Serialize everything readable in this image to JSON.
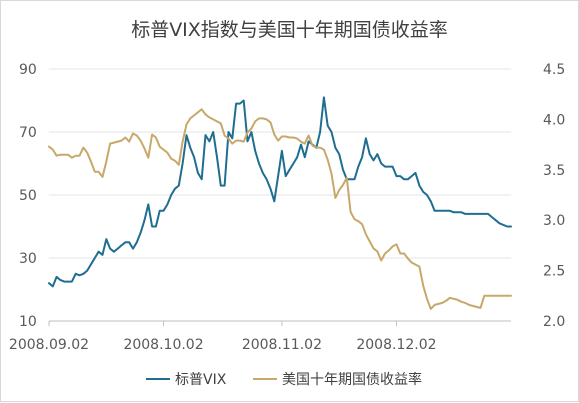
{
  "chart_data": {
    "type": "line",
    "title": "标普VIX指数与美国十年期国债收益率",
    "x_ticks": [
      "2008.09.02",
      "2008.10.02",
      "2008.11.02",
      "2008.12.02"
    ],
    "x_tick_days": [
      0,
      30,
      61,
      91
    ],
    "x_range_days": [
      0,
      121
    ],
    "y_left": {
      "ticks": [
        90,
        70,
        50,
        30,
        10
      ],
      "range": [
        10,
        90
      ]
    },
    "y_right": {
      "ticks": [
        "4.5",
        "4.0",
        "3.5",
        "3.0",
        "2.5",
        "2.0"
      ],
      "range": [
        2.0,
        4.5
      ]
    },
    "legend_position": "bottom",
    "series": [
      {
        "name": "标普VIX",
        "axis": "left",
        "color": "#1f6e91",
        "x": [
          0,
          1,
          2,
          3,
          4,
          5,
          6,
          7,
          8,
          9,
          10,
          11,
          12,
          13,
          14,
          15,
          16,
          17,
          18,
          19,
          20,
          21,
          22,
          23,
          24,
          25,
          26,
          27,
          28,
          29,
          30,
          31,
          32,
          33,
          34,
          35,
          36,
          37,
          38,
          39,
          40,
          41,
          42,
          43,
          44,
          45,
          46,
          47,
          48,
          49,
          50,
          51,
          52,
          53,
          54,
          55,
          56,
          57,
          58,
          59,
          60,
          61,
          62,
          63,
          64,
          65,
          66,
          67,
          68,
          69,
          70,
          71,
          72,
          73,
          74,
          75,
          76,
          77,
          78,
          79,
          80,
          81,
          82,
          83,
          84,
          85,
          86,
          87,
          88,
          89,
          90,
          91,
          92,
          93,
          94,
          95,
          96,
          97,
          98,
          99,
          100,
          101,
          102,
          103,
          104,
          105,
          106,
          107,
          108,
          109,
          110,
          111,
          112,
          113,
          114,
          115,
          116,
          117,
          118,
          119,
          120,
          121
        ],
        "y": [
          22,
          21,
          24,
          23,
          22.5,
          22.5,
          22.5,
          25,
          24.5,
          25,
          26,
          28,
          30,
          32,
          31,
          36,
          33,
          32,
          33,
          34,
          35,
          35,
          33,
          35,
          38,
          42,
          47,
          40,
          40,
          45,
          45,
          47,
          50,
          52,
          53,
          60,
          69,
          65,
          62,
          57,
          55,
          69,
          67,
          70,
          62,
          53,
          53,
          70,
          68,
          79,
          79,
          80,
          67,
          70,
          64,
          60,
          57,
          55,
          52,
          48,
          56,
          64,
          56,
          58,
          60,
          62,
          66,
          62,
          67,
          66,
          65,
          70,
          81,
          72,
          70,
          65,
          63,
          58,
          55,
          55,
          55,
          59,
          62,
          68,
          63,
          61,
          63,
          60,
          59,
          59,
          59,
          56,
          56,
          55,
          55,
          56,
          57,
          53,
          51,
          50,
          48,
          45,
          45,
          45,
          45,
          45,
          44.5,
          44.5,
          44.5,
          44,
          44,
          44,
          44,
          44,
          44,
          44,
          43,
          42,
          41,
          40.5,
          40,
          40
        ],
        "note_x_is_day_offset": true
      },
      {
        "name": "美国十年期国债收益率",
        "axis": "right",
        "color": "#c8a86a",
        "x": [
          0,
          1,
          2,
          3,
          4,
          5,
          6,
          7,
          8,
          9,
          10,
          11,
          12,
          13,
          14,
          15,
          16,
          17,
          18,
          19,
          20,
          21,
          22,
          23,
          24,
          25,
          26,
          27,
          28,
          29,
          30,
          31,
          32,
          33,
          34,
          35,
          36,
          37,
          38,
          39,
          40,
          41,
          42,
          43,
          44,
          45,
          46,
          47,
          48,
          49,
          50,
          51,
          52,
          53,
          54,
          55,
          56,
          57,
          58,
          59,
          60,
          61,
          62,
          63,
          64,
          65,
          66,
          67,
          68,
          69,
          70,
          71,
          72,
          73,
          74,
          75,
          76,
          77,
          78,
          79,
          80,
          81,
          82,
          83,
          84,
          85,
          86,
          87,
          88,
          89,
          90,
          91,
          92,
          93,
          94,
          95,
          96,
          97,
          98,
          99,
          100,
          101,
          102,
          103,
          104,
          105,
          106,
          107,
          108,
          109,
          110,
          111,
          112,
          113,
          114,
          115,
          116,
          117,
          118,
          119,
          120,
          121
        ],
        "y": [
          3.73,
          3.7,
          3.64,
          3.65,
          3.65,
          3.65,
          3.62,
          3.64,
          3.64,
          3.72,
          3.67,
          3.58,
          3.48,
          3.48,
          3.43,
          3.58,
          3.76,
          3.77,
          3.78,
          3.79,
          3.82,
          3.78,
          3.86,
          3.84,
          3.79,
          3.71,
          3.62,
          3.85,
          3.82,
          3.73,
          3.7,
          3.67,
          3.61,
          3.59,
          3.55,
          3.78,
          3.95,
          4.01,
          4.04,
          4.07,
          4.1,
          4.05,
          4.02,
          4.0,
          3.98,
          3.96,
          3.84,
          3.81,
          3.76,
          3.79,
          3.79,
          3.78,
          3.87,
          3.91,
          3.98,
          4.01,
          4.01,
          4.0,
          3.97,
          3.85,
          3.79,
          3.83,
          3.83,
          3.82,
          3.82,
          3.81,
          3.78,
          3.76,
          3.84,
          3.74,
          3.72,
          3.72,
          3.7,
          3.6,
          3.46,
          3.22,
          3.3,
          3.35,
          3.42,
          3.08,
          3.01,
          2.99,
          2.96,
          2.86,
          2.79,
          2.72,
          2.69,
          2.6,
          2.67,
          2.7,
          2.74,
          2.76,
          2.67,
          2.67,
          2.62,
          2.58,
          2.56,
          2.54,
          2.35,
          2.22,
          2.12,
          2.16,
          2.17,
          2.18,
          2.2,
          2.23,
          2.22,
          2.21,
          2.19,
          2.18,
          2.16,
          2.15,
          2.14,
          2.13,
          2.25,
          2.25,
          2.25,
          2.25,
          2.25,
          2.25,
          2.25,
          2.25
        ]
      }
    ]
  }
}
